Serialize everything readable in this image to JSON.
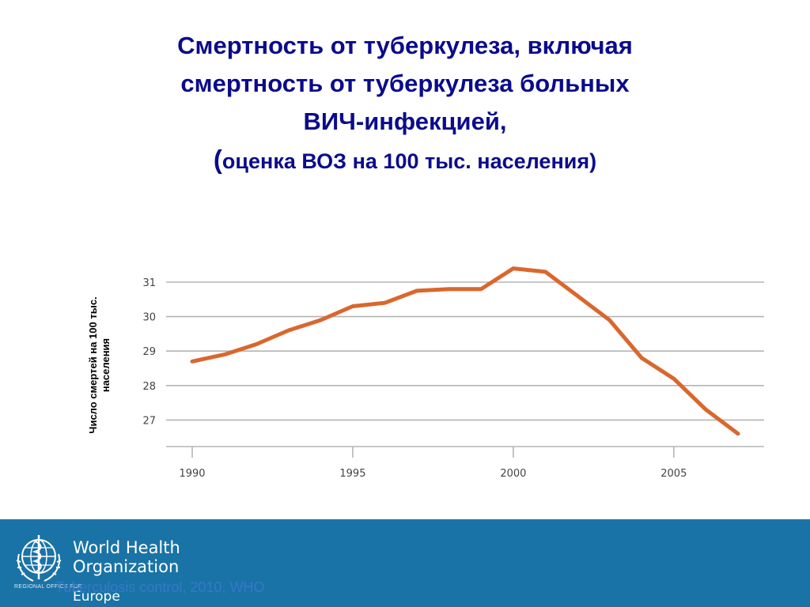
{
  "title": {
    "line1": "Смертность от туберкулеза, включая",
    "line2": "смертность от туберкулеза больных",
    "line3": "ВИЧ-инфекцией,",
    "line4_paren_open": "(",
    "line4": "оценка ВОЗ на 100 тыс. населения)"
  },
  "ylabel": {
    "line1": "Число смертей на 100 тыс.",
    "line2": "населения"
  },
  "chart_data": {
    "type": "line",
    "x": [
      1990,
      1991,
      1992,
      1993,
      1994,
      1995,
      1996,
      1997,
      1998,
      1999,
      2000,
      2001,
      2002,
      2003,
      2004,
      2005,
      2006,
      2007
    ],
    "series": [
      {
        "values": [
          28.7,
          28.9,
          29.2,
          29.6,
          29.9,
          30.3,
          30.4,
          30.75,
          30.8,
          30.8,
          31.4,
          31.3,
          30.6,
          29.9,
          28.8,
          28.2,
          27.3,
          26.6
        ]
      }
    ],
    "xticks": [
      1990,
      1995,
      2000,
      2005
    ],
    "yticks": [
      27,
      28,
      29,
      30,
      31
    ],
    "xlim": [
      1990,
      2007
    ],
    "ylim": [
      26.6,
      31.4
    ],
    "grid": true,
    "line_color": "#d9672e"
  },
  "footer": {
    "org_line1": "World Health",
    "org_line2": "Organization",
    "region_line": "REGIONAL OFFICE FOR",
    "region_name": "Europe",
    "source": "Tuberculosis control, 2010, WHO",
    "background_color": "#1a73a6"
  }
}
